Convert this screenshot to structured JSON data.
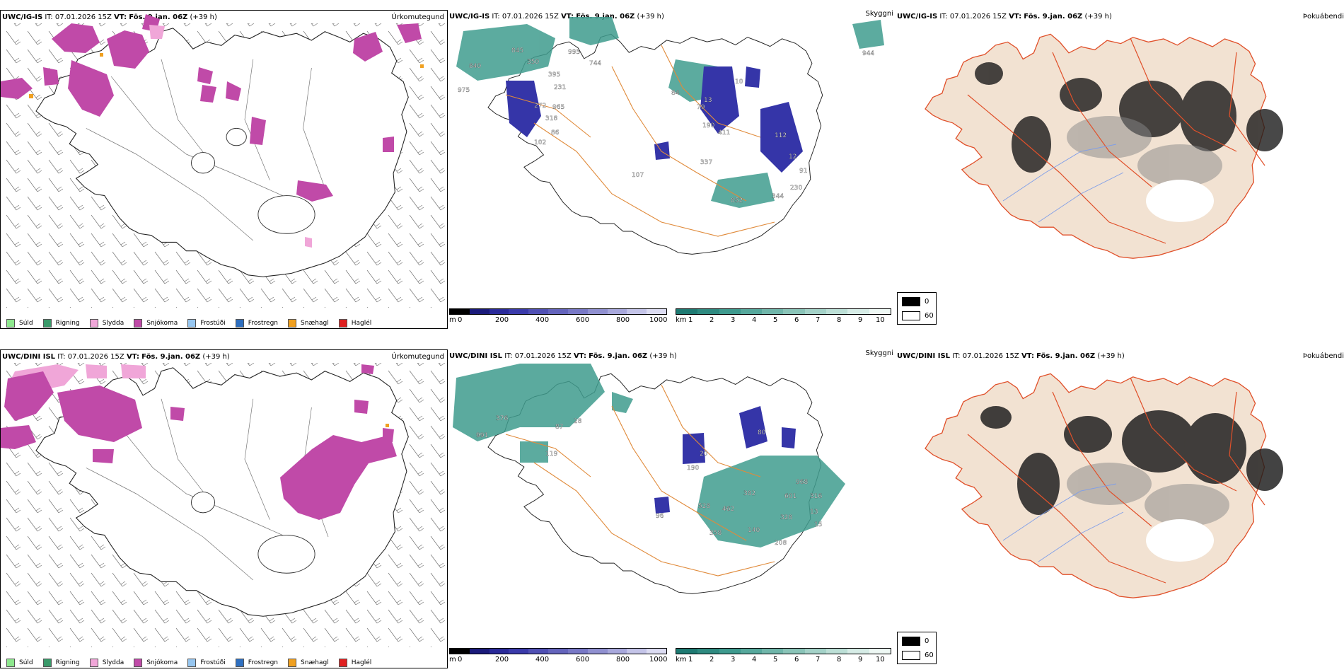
{
  "rows": [
    {
      "model": "UWC/IG-IS",
      "it_label": "IT:",
      "it_value": "07.01.2026 15Z",
      "vt_label": "VT:",
      "vt_value": "Fös. 9.jan. 06Z",
      "lead": "(+39 h)"
    },
    {
      "model": "UWC/DINI ISL",
      "it_label": "IT:",
      "it_value": "07.01.2026 15Z",
      "vt_label": "VT:",
      "vt_value": "Fös. 9.jan. 06Z",
      "lead": "(+39 h)"
    }
  ],
  "panel_titles": {
    "precip_type": "Úrkomutegund",
    "clouds": "Skyggni",
    "fog": "Þokuábendi"
  },
  "precip_legend": [
    {
      "label": "Súld",
      "color": "#8ee88e"
    },
    {
      "label": "Rigning",
      "color": "#3a9a6a"
    },
    {
      "label": "Slydda",
      "color": "#f0a6d8"
    },
    {
      "label": "Snjókoma",
      "color": "#c04aa8"
    },
    {
      "label": "Frostúði",
      "color": "#96c6f0"
    },
    {
      "label": "Frostregn",
      "color": "#2e6fc0"
    },
    {
      "label": "Snæhagl",
      "color": "#f0a020"
    },
    {
      "label": "Haglél",
      "color": "#e02020"
    }
  ],
  "ceiling_scale": {
    "unit": "m",
    "ticks": [
      "0",
      "200",
      "400",
      "600",
      "800",
      "1000"
    ],
    "colors": [
      "#000000",
      "#1a1a7a",
      "#2a2a9a",
      "#3a3aaa",
      "#5050b4",
      "#6464bc",
      "#7878c6",
      "#9090d0",
      "#a8a8dc",
      "#c4c4e8",
      "#dcdcf2"
    ]
  },
  "visibility_scale": {
    "unit": "km",
    "ticks": [
      "1",
      "2",
      "3",
      "4",
      "5",
      "6",
      "7",
      "8",
      "9",
      "10"
    ],
    "colors": [
      "#1e7a72",
      "#2e8a80",
      "#3e9a8e",
      "#56a89c",
      "#70b6aa",
      "#8ac4b8",
      "#a4d2c8",
      "#bcdfd6",
      "#d6ece6",
      "#eef8f4"
    ]
  },
  "fog_legend": [
    {
      "label": "0",
      "color": "#000000"
    },
    {
      "label": "60",
      "color": "#ffffff"
    }
  ],
  "map_labels": {
    "row1": [
      "840",
      "845",
      "995",
      "744",
      "975",
      "350",
      "395",
      "231",
      "272",
      "965",
      "318",
      "86",
      "102",
      "10",
      "13",
      "84",
      "79",
      "190",
      "411",
      "112",
      "12",
      "337",
      "91",
      "107",
      "852",
      "344",
      "230",
      "944"
    ],
    "row2": [
      "991",
      "376",
      "28",
      "87",
      "119",
      "80",
      "20",
      "190",
      "96",
      "528",
      "462",
      "382",
      "601",
      "968",
      "316",
      "328",
      "358",
      "140",
      "208",
      "13",
      "15"
    ]
  },
  "colors": {
    "snow": "#c04aa8",
    "sleet": "#f0a6d8",
    "teal": "#3f9c8e",
    "blue": "#3535a8",
    "roads_cloud": "#e08a3a",
    "roads_fog": "#e0502a",
    "land_fog": "#f2e2d2",
    "rivers": "#7f9ee8"
  }
}
